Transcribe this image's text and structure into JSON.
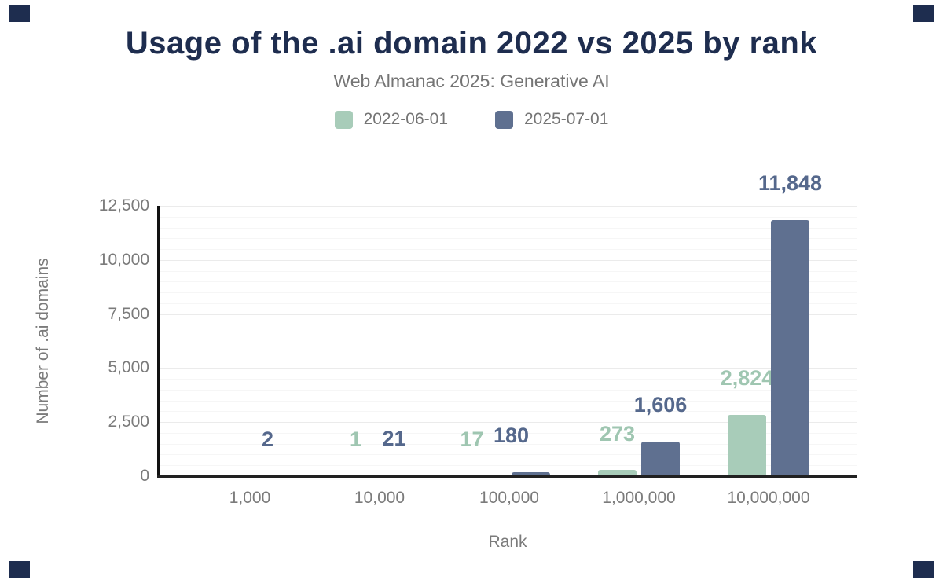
{
  "page": {
    "background": "#ffffff",
    "accent_navy": "#1e2d4f"
  },
  "header": {
    "title": "Usage of the .ai domain 2022 vs 2025 by rank",
    "subtitle": "Web Almanac 2025: Generative AI"
  },
  "legend": {
    "items": [
      {
        "label": "2022-06-01",
        "color": "#a8ccb9"
      },
      {
        "label": "2025-07-01",
        "color": "#5f7090"
      }
    ]
  },
  "chart_data": {
    "type": "bar",
    "title": "Usage of the .ai domain 2022 vs 2025 by rank",
    "subtitle": "Web Almanac 2025: Generative AI",
    "categories": [
      "1,000",
      "10,000",
      "100,000",
      "1,000,000",
      "10,000,000"
    ],
    "series": [
      {
        "name": "2022-06-01",
        "color": "#a8ccb9",
        "label_color": "#9fc6b1",
        "values": [
          0,
          1,
          17,
          273,
          2824
        ],
        "labels": [
          "",
          "1",
          "17",
          "273",
          "2,824"
        ],
        "label_dx": [
          0,
          -3,
          -20,
          0,
          0
        ]
      },
      {
        "name": "2025-07-01",
        "color": "#5f7090",
        "label_color": "#55688c",
        "values": [
          2,
          21,
          180,
          1606,
          11848
        ],
        "labels": [
          "2",
          "21",
          "180",
          "1,606",
          "11,848"
        ],
        "label_dx": [
          -5,
          -9,
          -25,
          0,
          0
        ]
      }
    ],
    "xlabel": "Rank",
    "ylabel": "Number of .ai domains",
    "ylim": [
      0,
      12500
    ],
    "yticks": [
      0,
      2500,
      5000,
      7500,
      10000,
      12500
    ],
    "ytick_labels": [
      "0",
      "2,500",
      "5,000",
      "7,500",
      "10,000",
      "12,500"
    ],
    "minor_grid_step": 500,
    "major_grid_step": 2500,
    "grid": true,
    "legend_position": "top"
  }
}
